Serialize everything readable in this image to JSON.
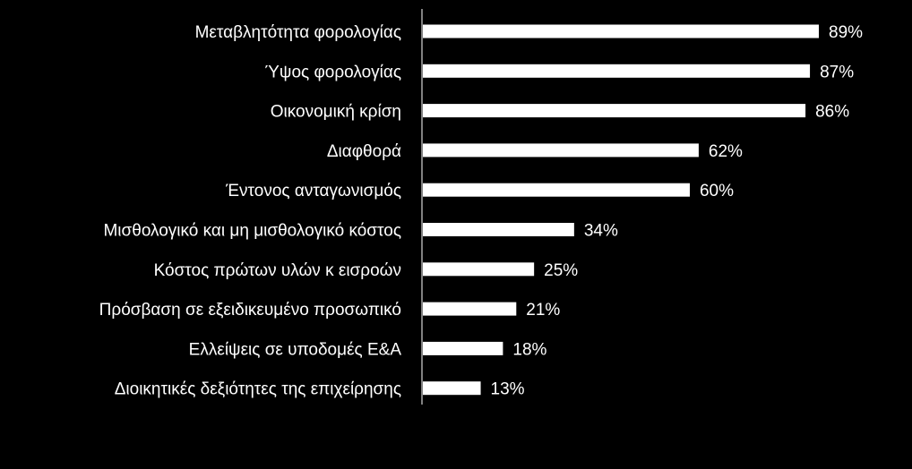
{
  "chart_data": {
    "type": "bar",
    "orientation": "horizontal",
    "title": "",
    "xlabel": "",
    "ylabel": "",
    "categories": [
      "Μεταβλητότητα φορολογίας",
      "Ύψος φορολογίας",
      "Οικονομική κρίση",
      "Διαφθορά",
      "Έντονος ανταγωνισμός",
      "Μισθολογικό και μη μισθολογικό κόστος",
      "Κόστος πρώτων υλών κ εισροών",
      "Πρόσβαση σε εξειδικευμένο προσωπικό",
      "Ελλείψεις σε υποδομές Ε&Α",
      "Διοικητικές δεξιότητες της επιχείρησης"
    ],
    "values": [
      89,
      87,
      86,
      62,
      60,
      34,
      25,
      21,
      18,
      13
    ],
    "value_labels": [
      "89%",
      "87%",
      "86%",
      "62%",
      "60%",
      "34%",
      "25%",
      "21%",
      "18%",
      "13%"
    ],
    "unit": "%",
    "xlim": [
      0,
      100
    ],
    "grid": false,
    "legend": "none",
    "colors": {
      "background": "#000000",
      "bar": "#ffffff",
      "text": "#ffffff"
    }
  }
}
